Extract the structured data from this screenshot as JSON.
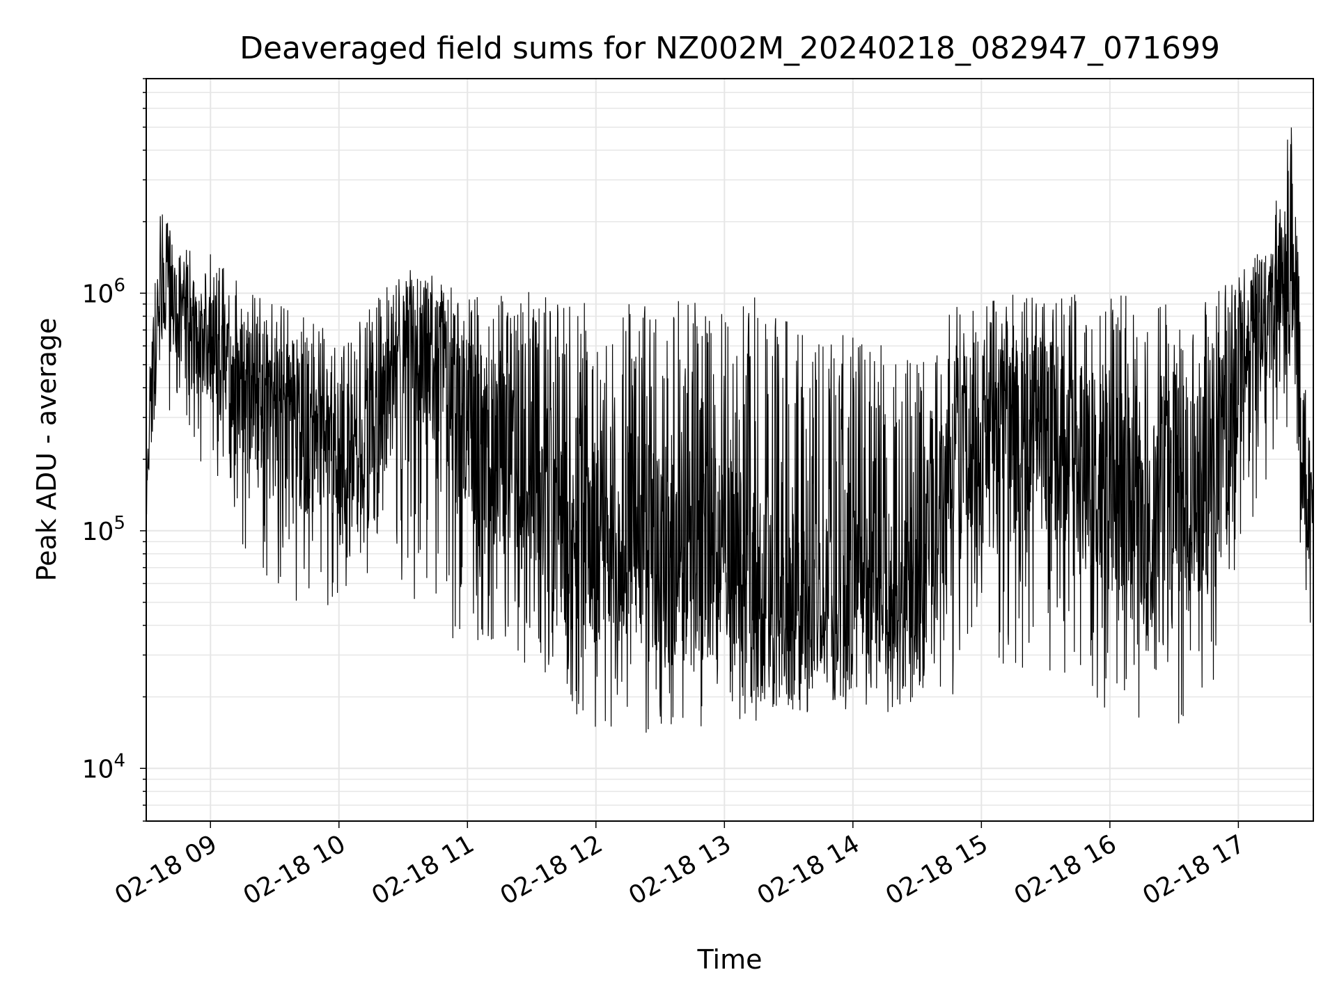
{
  "chart_data": {
    "type": "line",
    "title": "Deaveraged field sums for NZ002M_20240218_082947_071699",
    "xlabel": "Time",
    "ylabel": "Peak ADU - average",
    "xlim": [
      "2024-02-18 08:30",
      "2024-02-18 17:35"
    ],
    "ylim": [
      6000,
      8000000
    ],
    "yscale": "log",
    "grid": true,
    "line_color": "#000000",
    "grid_color": "#e6e6e6",
    "x_ticks": [
      "2024-02-18 09:00",
      "2024-02-18 10:00",
      "2024-02-18 11:00",
      "2024-02-18 12:00",
      "2024-02-18 13:00",
      "2024-02-18 14:00",
      "2024-02-18 15:00",
      "2024-02-18 16:00",
      "2024-02-18 17:00"
    ],
    "x_tick_labels": [
      "02-18 09",
      "02-18 10",
      "02-18 11",
      "02-18 12",
      "02-18 13",
      "02-18 14",
      "02-18 15",
      "02-18 16",
      "02-18 17"
    ],
    "y_ticks": [
      10000,
      100000,
      1000000
    ],
    "y_tick_labels": [
      {
        "base": "10",
        "exp": "4"
      },
      {
        "base": "10",
        "exp": "5"
      },
      {
        "base": "10",
        "exp": "6"
      }
    ],
    "series": [
      {
        "note": "dense oscillating series; values are a per-interval envelope read from the plot",
        "x": [
          "2024-02-18 08:30",
          "2024-02-18 08:35",
          "2024-02-18 08:45",
          "2024-02-18 09:00",
          "2024-02-18 09:15",
          "2024-02-18 09:30",
          "2024-02-18 09:45",
          "2024-02-18 10:00",
          "2024-02-18 10:15",
          "2024-02-18 10:30",
          "2024-02-18 10:45",
          "2024-02-18 11:00",
          "2024-02-18 11:15",
          "2024-02-18 11:30",
          "2024-02-18 11:45",
          "2024-02-18 12:00",
          "2024-02-18 12:15",
          "2024-02-18 12:30",
          "2024-02-18 12:45",
          "2024-02-18 13:00",
          "2024-02-18 13:15",
          "2024-02-18 13:30",
          "2024-02-18 13:45",
          "2024-02-18 14:00",
          "2024-02-18 14:15",
          "2024-02-18 14:30",
          "2024-02-18 14:45",
          "2024-02-18 15:00",
          "2024-02-18 15:15",
          "2024-02-18 15:30",
          "2024-02-18 15:45",
          "2024-02-18 16:00",
          "2024-02-18 16:15",
          "2024-02-18 16:30",
          "2024-02-18 16:45",
          "2024-02-18 17:00",
          "2024-02-18 17:15",
          "2024-02-18 17:25",
          "2024-02-18 17:30",
          "2024-02-18 17:35"
        ],
        "high": [
          300000,
          2500000,
          1600000,
          1500000,
          1200000,
          900000,
          900000,
          600000,
          900000,
          1300000,
          1200000,
          1000000,
          1200000,
          1000000,
          1000000,
          1000000,
          900000,
          1000000,
          950000,
          900000,
          1000000,
          800000,
          600000,
          700000,
          600000,
          500000,
          900000,
          900000,
          1000000,
          950000,
          1000000,
          1000000,
          950000,
          950000,
          950000,
          1200000,
          1800000,
          6000000,
          500000,
          200000
        ],
        "low": [
          100000,
          300000,
          300000,
          150000,
          80000,
          60000,
          40000,
          50000,
          60000,
          45000,
          40000,
          30000,
          25000,
          20000,
          15000,
          14000,
          15000,
          12000,
          15000,
          15000,
          15000,
          16000,
          17000,
          17000,
          16000,
          18000,
          20000,
          22000,
          22000,
          20000,
          18000,
          17000,
          13000,
          15000,
          17000,
          50000,
          200000,
          200000,
          60000,
          30000
        ],
        "typical": [
          150000,
          1000000,
          800000,
          600000,
          400000,
          300000,
          250000,
          200000,
          200000,
          500000,
          500000,
          300000,
          200000,
          150000,
          120000,
          100000,
          100000,
          80000,
          80000,
          80000,
          50000,
          45000,
          45000,
          50000,
          50000,
          45000,
          200000,
          300000,
          300000,
          250000,
          200000,
          150000,
          100000,
          150000,
          150000,
          500000,
          800000,
          1500000,
          150000,
          100000
        ]
      }
    ]
  }
}
